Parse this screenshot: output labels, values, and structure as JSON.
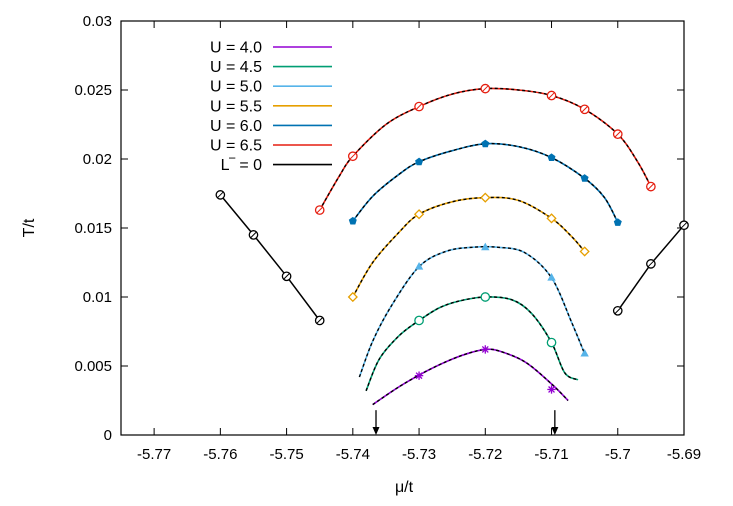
{
  "chart_data": {
    "type": "line",
    "title": "",
    "xlabel": "μ/t",
    "ylabel": "T/t",
    "xlim": [
      -5.775,
      -5.69
    ],
    "ylim": [
      0,
      0.03
    ],
    "xticks": [
      -5.77,
      -5.76,
      -5.75,
      -5.74,
      -5.73,
      -5.72,
      -5.71,
      -5.7,
      -5.69
    ],
    "yticks": [
      0,
      0.005,
      0.01,
      0.015,
      0.02,
      0.025,
      0.03
    ],
    "xtick_labels": [
      "-5.77",
      "-5.76",
      "-5.75",
      "-5.74",
      "-5.73",
      "-5.72",
      "-5.71",
      "-5.7",
      "-5.69"
    ],
    "ytick_labels": [
      "0",
      "0.005",
      "0.01",
      "0.015",
      "0.02",
      "0.025",
      "0.03"
    ],
    "legend_position": "top-left",
    "grid": false,
    "series": [
      {
        "name": "U = 4.0",
        "color": "#9400d3",
        "marker": "star",
        "points": [
          [
            -5.73,
            0.0043
          ],
          [
            -5.72,
            0.0062
          ],
          [
            -5.71,
            0.0033
          ]
        ],
        "curve": [
          [
            -5.737,
            0.0022
          ],
          [
            -5.733,
            0.0035
          ],
          [
            -5.729,
            0.0046
          ],
          [
            -5.725,
            0.0055
          ],
          [
            -5.722,
            0.006
          ],
          [
            -5.72,
            0.0062
          ],
          [
            -5.718,
            0.0061
          ],
          [
            -5.714,
            0.0053
          ],
          [
            -5.71,
            0.0037
          ],
          [
            -5.7075,
            0.0025
          ]
        ]
      },
      {
        "name": "U = 4.5",
        "color": "#009e73",
        "marker": "circle-open",
        "points": [
          [
            -5.73,
            0.0083
          ],
          [
            -5.72,
            0.01
          ],
          [
            -5.71,
            0.0067
          ]
        ],
        "curve": [
          [
            -5.738,
            0.0032
          ],
          [
            -5.736,
            0.0055
          ],
          [
            -5.733,
            0.0072
          ],
          [
            -5.73,
            0.0083
          ],
          [
            -5.727,
            0.0092
          ],
          [
            -5.724,
            0.0097
          ],
          [
            -5.72,
            0.01
          ],
          [
            -5.716,
            0.0098
          ],
          [
            -5.713,
            0.0088
          ],
          [
            -5.71,
            0.0067
          ],
          [
            -5.708,
            0.0045
          ],
          [
            -5.706,
            0.004
          ]
        ]
      },
      {
        "name": "U = 5.0",
        "color": "#56b4e9",
        "marker": "triangle",
        "points": [
          [
            -5.73,
            0.0122
          ],
          [
            -5.72,
            0.0136
          ],
          [
            -5.71,
            0.0114
          ],
          [
            -5.705,
            0.0059
          ]
        ],
        "curve": [
          [
            -5.739,
            0.0042
          ],
          [
            -5.737,
            0.0068
          ],
          [
            -5.734,
            0.0095
          ],
          [
            -5.73,
            0.0122
          ],
          [
            -5.726,
            0.0133
          ],
          [
            -5.722,
            0.0136
          ],
          [
            -5.718,
            0.0136
          ],
          [
            -5.714,
            0.0132
          ],
          [
            -5.71,
            0.0114
          ],
          [
            -5.707,
            0.0082
          ],
          [
            -5.705,
            0.0059
          ]
        ]
      },
      {
        "name": "U = 5.5",
        "color": "#e69f00",
        "marker": "diamond-open",
        "points": [
          [
            -5.74,
            0.01
          ],
          [
            -5.73,
            0.016
          ],
          [
            -5.72,
            0.0172
          ],
          [
            -5.71,
            0.0157
          ],
          [
            -5.705,
            0.0133
          ]
        ],
        "curve": [
          [
            -5.74,
            0.01
          ],
          [
            -5.737,
            0.0125
          ],
          [
            -5.733,
            0.0147
          ],
          [
            -5.73,
            0.016
          ],
          [
            -5.725,
            0.0169
          ],
          [
            -5.72,
            0.0172
          ],
          [
            -5.715,
            0.017
          ],
          [
            -5.71,
            0.0157
          ],
          [
            -5.707,
            0.0144
          ],
          [
            -5.705,
            0.0133
          ]
        ]
      },
      {
        "name": "U = 6.0",
        "color": "#0072b2",
        "marker": "pentagon",
        "points": [
          [
            -5.74,
            0.0155
          ],
          [
            -5.73,
            0.0198
          ],
          [
            -5.72,
            0.0211
          ],
          [
            -5.71,
            0.0201
          ],
          [
            -5.705,
            0.0186
          ],
          [
            -5.7,
            0.0154
          ]
        ],
        "curve": [
          [
            -5.74,
            0.0155
          ],
          [
            -5.737,
            0.0173
          ],
          [
            -5.733,
            0.0189
          ],
          [
            -5.73,
            0.0198
          ],
          [
            -5.725,
            0.0206
          ],
          [
            -5.72,
            0.0211
          ],
          [
            -5.715,
            0.0209
          ],
          [
            -5.71,
            0.0201
          ],
          [
            -5.705,
            0.0186
          ],
          [
            -5.702,
            0.0172
          ],
          [
            -5.7,
            0.0154
          ]
        ]
      },
      {
        "name": "U = 6.5",
        "color": "#e51e10",
        "marker": "circle-slash",
        "points": [
          [
            -5.745,
            0.0163
          ],
          [
            -5.74,
            0.0202
          ],
          [
            -5.73,
            0.0238
          ],
          [
            -5.72,
            0.0251
          ],
          [
            -5.71,
            0.0246
          ],
          [
            -5.705,
            0.0236
          ],
          [
            -5.7,
            0.0218
          ],
          [
            -5.695,
            0.018
          ]
        ],
        "curve": [
          [
            -5.745,
            0.0163
          ],
          [
            -5.742,
            0.0188
          ],
          [
            -5.74,
            0.0202
          ],
          [
            -5.735,
            0.0225
          ],
          [
            -5.73,
            0.0238
          ],
          [
            -5.725,
            0.0247
          ],
          [
            -5.72,
            0.0251
          ],
          [
            -5.715,
            0.025
          ],
          [
            -5.71,
            0.0246
          ],
          [
            -5.705,
            0.0236
          ],
          [
            -5.7,
            0.0218
          ],
          [
            -5.697,
            0.0198
          ],
          [
            -5.695,
            0.018
          ]
        ]
      },
      {
        "name": "L‾ = 0",
        "color": "#000000",
        "marker": "circle-slash",
        "segments": [
          [
            [
              -5.76,
              0.0174
            ],
            [
              -5.755,
              0.0145
            ],
            [
              -5.75,
              0.0115
            ],
            [
              -5.745,
              0.0083
            ]
          ],
          [
            [
              -5.7,
              0.009
            ],
            [
              -5.695,
              0.0124
            ],
            [
              -5.69,
              0.0152
            ]
          ]
        ]
      }
    ],
    "annotations": [
      {
        "type": "arrow",
        "x": -5.7365,
        "y_from": 0.0018,
        "y_to": 0
      },
      {
        "type": "arrow",
        "x": -5.7095,
        "y_from": 0.0018,
        "y_to": 0
      }
    ]
  }
}
